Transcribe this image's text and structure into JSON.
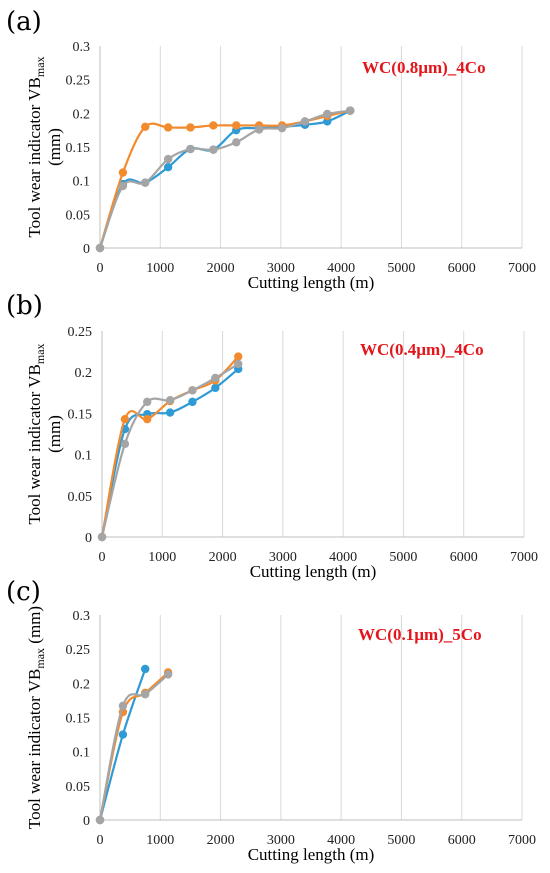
{
  "colors": {
    "series1": "#2e9bd6",
    "series2": "#f28a2e",
    "series3": "#a5a5a5",
    "annotation": "#e3161b"
  },
  "chart_data": [
    {
      "type": "line",
      "panel": "(a)",
      "annotation": "WC(0.8µm)_4Co",
      "xlabel": "Cutting length (m)",
      "ylabel": "Tool wear indicator VB",
      "ylabel_sub": "max",
      "ylabel_unit": "(mm)",
      "xlim": [
        0,
        7000
      ],
      "ylim": [
        0,
        0.3
      ],
      "xticks": [
        "0",
        "1000",
        "2000",
        "3000",
        "4000",
        "5000",
        "6000",
        "7000"
      ],
      "yticks": [
        "0",
        "0.05",
        "0.1",
        "0.15",
        "0.2",
        "0.25",
        "0.3"
      ],
      "grid": "vertical",
      "series": [
        {
          "x": [
            0,
            380,
            750,
            1130,
            1500,
            1880,
            2260,
            2640,
            3020,
            3400,
            3770,
            4150
          ],
          "y": [
            0,
            0.095,
            0.097,
            0.12,
            0.147,
            0.146,
            0.175,
            0.178,
            0.18,
            0.183,
            0.188,
            0.204
          ]
        },
        {
          "x": [
            0,
            380,
            750,
            1130,
            1500,
            1880,
            2260,
            2640,
            3020,
            3400,
            3770,
            4150
          ],
          "y": [
            0,
            0.112,
            0.18,
            0.179,
            0.179,
            0.182,
            0.182,
            0.182,
            0.182,
            0.188,
            0.196,
            0.204
          ]
        },
        {
          "x": [
            0,
            380,
            750,
            1130,
            1500,
            1880,
            2260,
            2640,
            3020,
            3400,
            3770,
            4150
          ],
          "y": [
            0,
            0.092,
            0.097,
            0.132,
            0.147,
            0.146,
            0.157,
            0.176,
            0.178,
            0.188,
            0.199,
            0.204
          ]
        }
      ]
    },
    {
      "type": "line",
      "panel": "(b)",
      "annotation": "WC(0.4µm)_4Co",
      "xlabel": "Cutting length (m)",
      "ylabel": "Tool wear indicator VB",
      "ylabel_sub": "max",
      "ylabel_unit": "(mm)",
      "xlim": [
        0,
        7000
      ],
      "ylim": [
        0,
        0.25
      ],
      "xticks": [
        "0",
        "1000",
        "2000",
        "3000",
        "4000",
        "5000",
        "6000",
        "7000"
      ],
      "yticks": [
        "0",
        "0.05",
        "0.1",
        "0.15",
        "0.2",
        "0.25"
      ],
      "grid": "vertical",
      "series": [
        {
          "x": [
            0,
            380,
            750,
            1130,
            1500,
            1880,
            2260
          ],
          "y": [
            0,
            0.131,
            0.149,
            0.151,
            0.164,
            0.181,
            0.204
          ]
        },
        {
          "x": [
            0,
            380,
            750,
            1130,
            1500,
            1880,
            2260
          ],
          "y": [
            0,
            0.143,
            0.143,
            0.165,
            0.178,
            0.19,
            0.219
          ]
        },
        {
          "x": [
            0,
            380,
            750,
            1130,
            1500,
            1880,
            2260
          ],
          "y": [
            0,
            0.113,
            0.164,
            0.166,
            0.178,
            0.193,
            0.21
          ]
        }
      ]
    },
    {
      "type": "line",
      "panel": "(c)",
      "annotation": "WC(0.1µm)_5Co",
      "xlabel": "Cutting length (m)",
      "ylabel": "Tool wear indicator VB",
      "ylabel_sub": "max",
      "ylabel_unit": "(mm)",
      "xlim": [
        0,
        7000
      ],
      "ylim": [
        0,
        0.3
      ],
      "xticks": [
        "0",
        "1000",
        "2000",
        "3000",
        "4000",
        "5000",
        "6000",
        "7000"
      ],
      "yticks": [
        "0",
        "0.05",
        "0.1",
        "0.15",
        "0.2",
        "0.25",
        "0.3"
      ],
      "grid": "vertical",
      "series": [
        {
          "x": [
            0,
            380,
            750
          ],
          "y": [
            0,
            0.125,
            0.221
          ]
        },
        {
          "x": [
            0,
            380,
            750,
            1130
          ],
          "y": [
            0,
            0.158,
            0.186,
            0.216
          ]
        },
        {
          "x": [
            0,
            380,
            750,
            1130
          ],
          "y": [
            0,
            0.167,
            0.184,
            0.213
          ]
        }
      ]
    }
  ]
}
